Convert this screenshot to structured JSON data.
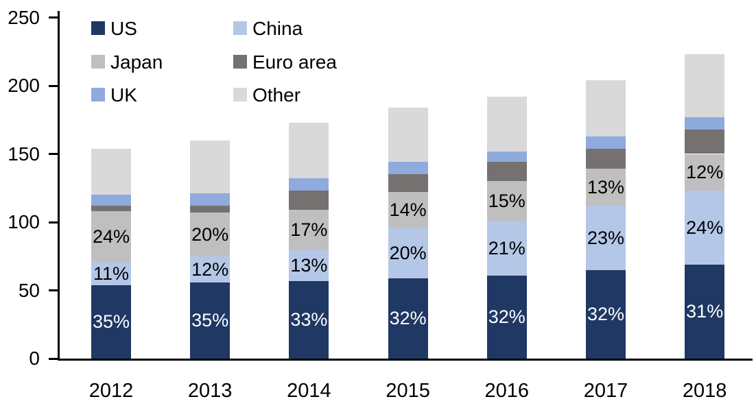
{
  "chart_data": {
    "type": "bar",
    "stacked": true,
    "title": "",
    "xlabel": "",
    "ylabel": "",
    "categories": [
      "2012",
      "2013",
      "2014",
      "2015",
      "2016",
      "2017",
      "2018"
    ],
    "series": [
      {
        "name": "US",
        "color": "#1F3864",
        "values": [
          54,
          56,
          57,
          59,
          61,
          65,
          69
        ],
        "labels": [
          "35%",
          "35%",
          "33%",
          "32%",
          "32%",
          "32%",
          "31%"
        ],
        "label_color": "#FFFFFF"
      },
      {
        "name": "China",
        "color": "#B4C7E7",
        "values": [
          17,
          19,
          23,
          37,
          40,
          47,
          54
        ],
        "labels": [
          "11%",
          "12%",
          "13%",
          "20%",
          "21%",
          "23%",
          "24%"
        ],
        "label_color": "#000000"
      },
      {
        "name": "Japan",
        "color": "#BFBFBF",
        "values": [
          37,
          32,
          29,
          26,
          29,
          27,
          27
        ],
        "labels": [
          "24%",
          "20%",
          "17%",
          "14%",
          "15%",
          "13%",
          "12%"
        ],
        "label_color": "#000000"
      },
      {
        "name": "Euro area",
        "color": "#767171",
        "values": [
          4,
          5,
          14,
          13,
          14,
          15,
          18
        ],
        "labels": null,
        "label_color": "#000000"
      },
      {
        "name": "UK",
        "color": "#8FAADC",
        "values": [
          8,
          9,
          9,
          9,
          8,
          9,
          9
        ],
        "labels": null,
        "label_color": "#000000"
      },
      {
        "name": "Other",
        "color": "#D9D9D9",
        "values": [
          34,
          39,
          41,
          40,
          40,
          41,
          46
        ],
        "labels": null,
        "label_color": "#000000"
      }
    ],
    "totals": [
      154,
      160,
      173,
      184,
      192,
      204,
      223
    ],
    "ylim": [
      0,
      250
    ],
    "yticks": [
      0,
      50,
      100,
      150,
      200,
      250
    ],
    "ytick_labels": [
      "0",
      "50",
      "100",
      "150",
      "200",
      "250"
    ],
    "grid": false,
    "legend_position": "top-left",
    "legend_rows": [
      [
        "US",
        "China"
      ],
      [
        "Japan",
        "Euro area"
      ],
      [
        "UK",
        "Other"
      ]
    ]
  },
  "layout_text": {
    "note": ""
  }
}
